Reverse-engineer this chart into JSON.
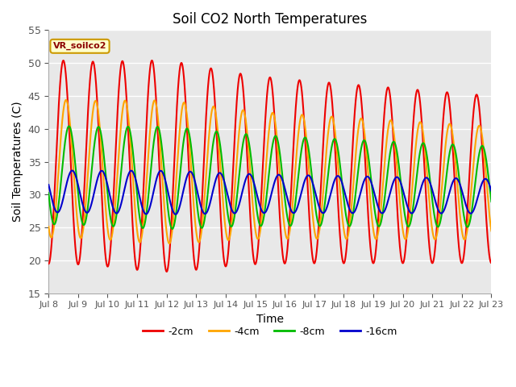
{
  "title": "Soil CO2 North Temperatures",
  "xlabel": "Time",
  "ylabel": "Soil Temperatures (C)",
  "ylim": [
    15,
    55
  ],
  "background_color": "#e8e8e8",
  "legend_label": "VR_soilco2",
  "series": [
    {
      "name": "-2cm",
      "color": "#ee0000",
      "amplitude": 15.5,
      "mean": 35.0,
      "phase": 0.0,
      "trend": -0.18
    },
    {
      "name": "-4cm",
      "color": "#ffa500",
      "amplitude": 10.5,
      "mean": 34.0,
      "phase": 0.09,
      "trend": -0.15
    },
    {
      "name": "-8cm",
      "color": "#00bb00",
      "amplitude": 7.5,
      "mean": 33.0,
      "phase": 0.19,
      "trend": -0.12
    },
    {
      "name": "-16cm",
      "color": "#0000cc",
      "amplitude": 3.2,
      "mean": 30.5,
      "phase": 0.3,
      "trend": -0.05
    }
  ],
  "tick_days": [
    8,
    9,
    10,
    11,
    12,
    13,
    14,
    15,
    16,
    17,
    18,
    19,
    20,
    21,
    22,
    23
  ],
  "yticks": [
    15,
    20,
    25,
    30,
    35,
    40,
    45,
    50,
    55
  ]
}
